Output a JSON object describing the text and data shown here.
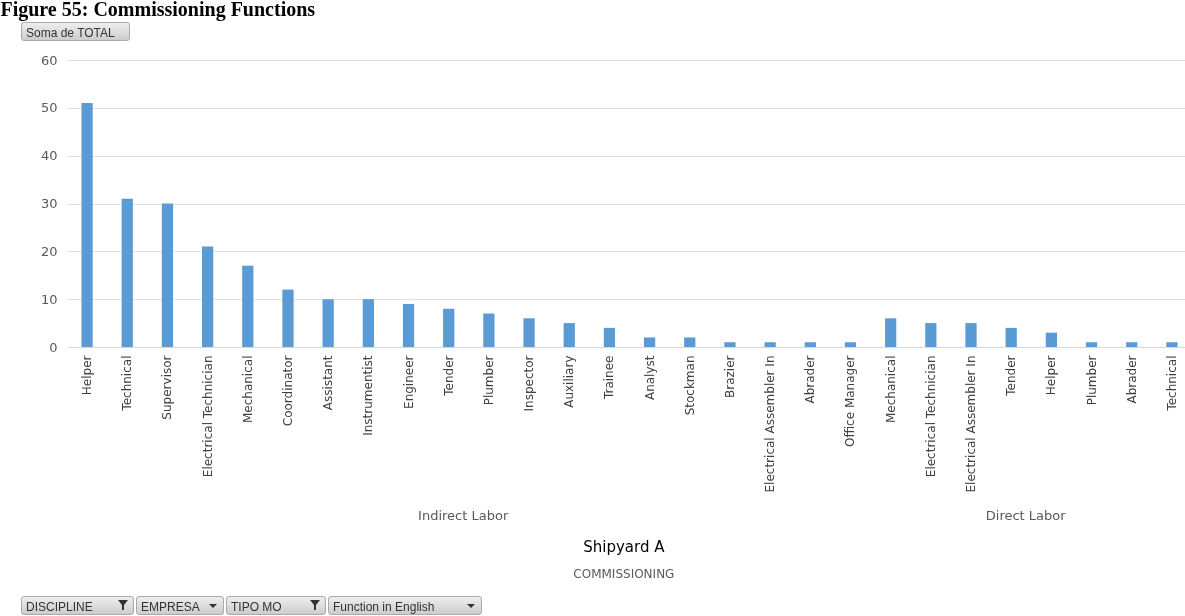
{
  "chart_data": {
    "type": "bar",
    "title": "Figure 55: Commissioning Functions",
    "categories": [
      "Helper",
      "Technical",
      "Supervisor",
      "Electrical Technician",
      "Mechanical",
      "Coordinator",
      "Assistant",
      "Instrumentist",
      "Engineer",
      "Tender",
      "Plumber",
      "Inspector",
      "Auxiliary",
      "Trainee",
      "Analyst",
      "Stockman",
      "Brazier",
      "Electrical Assembler In",
      "Abrader",
      "Office Manager",
      "Mechanical",
      "Electrical Technician",
      "Electrical Assembler In",
      "Tender",
      "Helper",
      "Plumber",
      "Abrader",
      "Technical"
    ],
    "values": [
      51,
      31,
      30,
      21,
      17,
      12,
      10,
      10,
      9,
      8,
      7,
      6,
      5,
      4,
      2,
      2,
      1,
      1,
      1,
      1,
      6,
      5,
      5,
      4,
      3,
      1,
      1,
      1
    ],
    "color": "#5b9bd5",
    "ylim": [
      0,
      60
    ],
    "yticks": [
      0,
      10,
      20,
      30,
      40,
      50,
      60
    ],
    "grid": "y",
    "annotations": [
      "Indirect Labor",
      "Direct Labor",
      "Shipyard A",
      "COMMISSIONING",
      "Soma de TOTAL",
      "DISCIPLINE",
      "EMPRESA",
      "TIPO MO",
      "Function in English"
    ]
  }
}
